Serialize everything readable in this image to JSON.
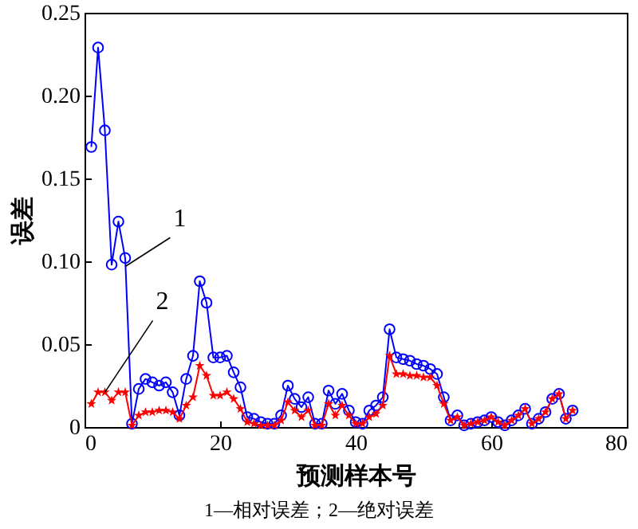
{
  "chart_data": {
    "type": "line",
    "xlabel": "预测样本号",
    "ylabel": "误差",
    "x": [
      1,
      2,
      3,
      4,
      5,
      6,
      7,
      8,
      9,
      10,
      11,
      12,
      13,
      14,
      15,
      16,
      17,
      18,
      19,
      20,
      21,
      22,
      23,
      24,
      25,
      26,
      27,
      28,
      29,
      30,
      31,
      32,
      33,
      34,
      35,
      36,
      37,
      38,
      39,
      40,
      41,
      42,
      43,
      44,
      45,
      46,
      47,
      48,
      49,
      50,
      51,
      52,
      53,
      54,
      55,
      56,
      57,
      58,
      59,
      60,
      61,
      62,
      63,
      64,
      65,
      66,
      67,
      68,
      69,
      70,
      71,
      72
    ],
    "series": [
      {
        "color": "#0000ff",
        "marker": "circle",
        "values": [
          0.169,
          0.229,
          0.179,
          0.098,
          0.124,
          0.102,
          0.002,
          0.023,
          0.029,
          0.027,
          0.025,
          0.027,
          0.021,
          0.007,
          0.029,
          0.043,
          0.088,
          0.075,
          0.042,
          0.042,
          0.043,
          0.033,
          0.024,
          0.006,
          0.005,
          0.003,
          0.002,
          0.002,
          0.007,
          0.025,
          0.017,
          0.012,
          0.018,
          0.002,
          0.002,
          0.022,
          0.014,
          0.02,
          0.01,
          0.003,
          0.002,
          0.01,
          0.013,
          0.018,
          0.059,
          0.042,
          0.041,
          0.04,
          0.038,
          0.037,
          0.035,
          0.032,
          0.018,
          0.004,
          0.007,
          0.001,
          0.002,
          0.003,
          0.004,
          0.006,
          0.003,
          0.001,
          0.004,
          0.007,
          0.011,
          0.002,
          0.005,
          0.009,
          0.017,
          0.02,
          0.005,
          0.01
        ]
      },
      {
        "color": "#ff0000",
        "marker": "star",
        "values": [
          0.014,
          0.021,
          0.021,
          0.016,
          0.021,
          0.021,
          0.001,
          0.007,
          0.009,
          0.009,
          0.01,
          0.01,
          0.009,
          0.005,
          0.013,
          0.018,
          0.037,
          0.031,
          0.019,
          0.019,
          0.021,
          0.017,
          0.011,
          0.003,
          0.002,
          0.001,
          0.001,
          0.001,
          0.004,
          0.015,
          0.01,
          0.006,
          0.01,
          0.001,
          0.001,
          0.014,
          0.007,
          0.013,
          0.007,
          0.002,
          0.002,
          0.006,
          0.008,
          0.013,
          0.043,
          0.032,
          0.032,
          0.031,
          0.031,
          0.03,
          0.03,
          0.025,
          0.014,
          0.004,
          0.006,
          0.001,
          0.002,
          0.003,
          0.004,
          0.006,
          0.003,
          0.001,
          0.004,
          0.007,
          0.011,
          0.002,
          0.005,
          0.009,
          0.017,
          0.02,
          0.005,
          0.01
        ]
      }
    ],
    "xlim": [
      0,
      80
    ],
    "xticks": [
      0,
      20,
      40,
      60,
      80
    ],
    "ylim": [
      0,
      0.25
    ],
    "yticks": [
      0,
      0.05,
      {
        "value": 0.1,
        "label": "0.10"
      },
      0.15,
      {
        "value": 0.2,
        "label": "0.20"
      },
      0.25
    ],
    "grid": false,
    "line_style": "solid",
    "annotations": [
      {
        "text": "1",
        "x": 6.05,
        "y": 0.097
      },
      {
        "text": "2",
        "x": 3,
        "y": 0.021
      },
      "1—相对误差；2—绝对误差"
    ]
  }
}
